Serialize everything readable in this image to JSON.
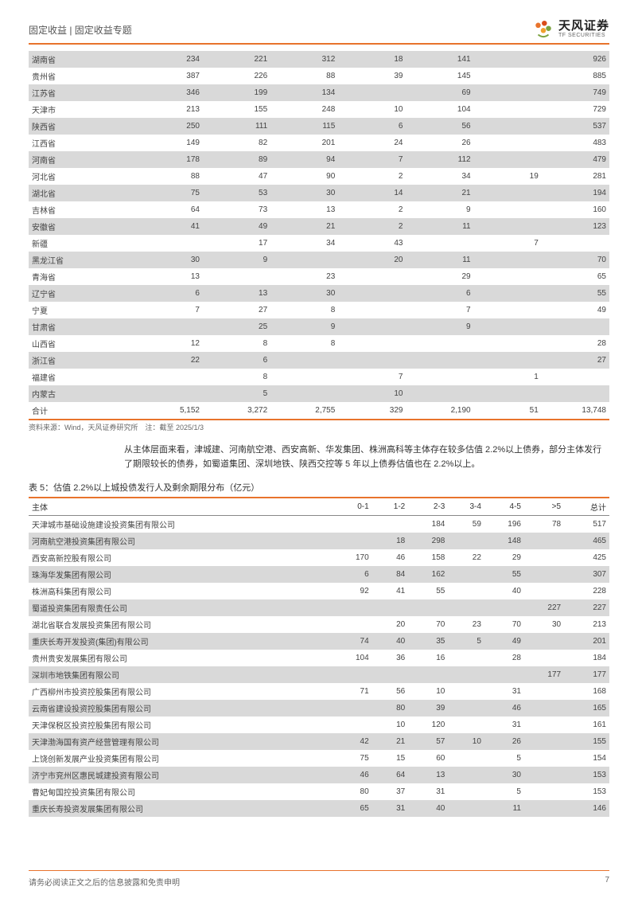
{
  "header": {
    "category": "固定收益 | 固定收益专题",
    "company_cn": "天风证券",
    "company_en": "TF SECURITIES"
  },
  "table1": {
    "rows": [
      {
        "p": "湖南省",
        "c1": "234",
        "c2": "221",
        "c3": "312",
        "c4": "18",
        "c5": "141",
        "c6": "",
        "tot": "926"
      },
      {
        "p": "贵州省",
        "c1": "387",
        "c2": "226",
        "c3": "88",
        "c4": "39",
        "c5": "145",
        "c6": "",
        "tot": "885"
      },
      {
        "p": "江苏省",
        "c1": "346",
        "c2": "199",
        "c3": "134",
        "c4": "",
        "c5": "69",
        "c6": "",
        "tot": "749"
      },
      {
        "p": "天津市",
        "c1": "213",
        "c2": "155",
        "c3": "248",
        "c4": "10",
        "c5": "104",
        "c6": "",
        "tot": "729"
      },
      {
        "p": "陕西省",
        "c1": "250",
        "c2": "111",
        "c3": "115",
        "c4": "6",
        "c5": "56",
        "c6": "",
        "tot": "537"
      },
      {
        "p": "江西省",
        "c1": "149",
        "c2": "82",
        "c3": "201",
        "c4": "24",
        "c5": "26",
        "c6": "",
        "tot": "483"
      },
      {
        "p": "河南省",
        "c1": "178",
        "c2": "89",
        "c3": "94",
        "c4": "7",
        "c5": "112",
        "c6": "",
        "tot": "479"
      },
      {
        "p": "河北省",
        "c1": "88",
        "c2": "47",
        "c3": "90",
        "c4": "2",
        "c5": "34",
        "c6": "19",
        "tot": "281"
      },
      {
        "p": "湖北省",
        "c1": "75",
        "c2": "53",
        "c3": "30",
        "c4": "14",
        "c5": "21",
        "c6": "",
        "tot": "194"
      },
      {
        "p": "吉林省",
        "c1": "64",
        "c2": "73",
        "c3": "13",
        "c4": "2",
        "c5": "9",
        "c6": "",
        "tot": "160"
      },
      {
        "p": "安徽省",
        "c1": "41",
        "c2": "49",
        "c3": "21",
        "c4": "2",
        "c5": "11",
        "c6": "",
        "tot": "123"
      },
      {
        "p": "新疆",
        "c1": "",
        "c2": "17",
        "c3": "34",
        "c4": "43",
        "c5": "",
        "c6": "7",
        "tot": ""
      },
      {
        "p": "黑龙江省",
        "c1": "30",
        "c2": "9",
        "c3": "",
        "c4": "20",
        "c5": "11",
        "c6": "",
        "tot": "70"
      },
      {
        "p": "青海省",
        "c1": "13",
        "c2": "",
        "c3": "23",
        "c4": "",
        "c5": "29",
        "c6": "",
        "tot": "65"
      },
      {
        "p": "辽宁省",
        "c1": "6",
        "c2": "13",
        "c3": "30",
        "c4": "",
        "c5": "6",
        "c6": "",
        "tot": "55"
      },
      {
        "p": "宁夏",
        "c1": "7",
        "c2": "27",
        "c3": "8",
        "c4": "",
        "c5": "7",
        "c6": "",
        "tot": "49"
      },
      {
        "p": "甘肃省",
        "c1": "",
        "c2": "25",
        "c3": "9",
        "c4": "",
        "c5": "9",
        "c6": "",
        "tot": ""
      },
      {
        "p": "山西省",
        "c1": "12",
        "c2": "8",
        "c3": "8",
        "c4": "",
        "c5": "",
        "c6": "",
        "tot": "28"
      },
      {
        "p": "浙江省",
        "c1": "22",
        "c2": "6",
        "c3": "",
        "c4": "",
        "c5": "",
        "c6": "",
        "tot": "27"
      },
      {
        "p": "福建省",
        "c1": "",
        "c2": "8",
        "c3": "",
        "c4": "7",
        "c5": "",
        "c6": "1",
        "tot": ""
      },
      {
        "p": "内蒙古",
        "c1": "",
        "c2": "5",
        "c3": "",
        "c4": "10",
        "c5": "",
        "c6": "",
        "tot": ""
      }
    ],
    "total": {
      "p": "合计",
      "c1": "5,152",
      "c2": "3,272",
      "c3": "2,755",
      "c4": "329",
      "c5": "2,190",
      "c6": "51",
      "tot": "13,748"
    },
    "source": "资料来源：Wind，天风证券研究所　注：截至 2025/1/3"
  },
  "paragraph": "从主体层面来看，津城建、河南航空港、西安高新、华发集团、株洲高科等主体存在较多估值 2.2%以上债券，部分主体发行了期限较长的债券，如蜀道集团、深圳地铁、陕西交控等 5 年以上债券估值也在 2.2%以上。",
  "table2": {
    "title": "表 5：估值 2.2%以上城投债发行人及剩余期限分布（亿元）",
    "headers": {
      "h0": "主体",
      "h1": "0-1",
      "h2": "1-2",
      "h3": "2-3",
      "h4": "3-4",
      "h5": "4-5",
      "h6": ">5",
      "h7": "总计"
    },
    "rows": [
      {
        "n": "天津城市基础设施建设投资集团有限公司",
        "c1": "",
        "c2": "",
        "c3": "184",
        "c4": "59",
        "c5": "196",
        "c6": "78",
        "t": "517"
      },
      {
        "n": "河南航空港投资集团有限公司",
        "c1": "",
        "c2": "18",
        "c3": "298",
        "c4": "",
        "c5": "148",
        "c6": "",
        "t": "465"
      },
      {
        "n": "西安高新控股有限公司",
        "c1": "170",
        "c2": "46",
        "c3": "158",
        "c4": "22",
        "c5": "29",
        "c6": "",
        "t": "425"
      },
      {
        "n": "珠海华发集团有限公司",
        "c1": "6",
        "c2": "84",
        "c3": "162",
        "c4": "",
        "c5": "55",
        "c6": "",
        "t": "307"
      },
      {
        "n": "株洲高科集团有限公司",
        "c1": "92",
        "c2": "41",
        "c3": "55",
        "c4": "",
        "c5": "40",
        "c6": "",
        "t": "228"
      },
      {
        "n": "蜀道投资集团有限责任公司",
        "c1": "",
        "c2": "",
        "c3": "",
        "c4": "",
        "c5": "",
        "c6": "227",
        "t": "227"
      },
      {
        "n": "湖北省联合发展投资集团有限公司",
        "c1": "",
        "c2": "20",
        "c3": "70",
        "c4": "23",
        "c5": "70",
        "c6": "30",
        "t": "213"
      },
      {
        "n": "重庆长寿开发投资(集团)有限公司",
        "c1": "74",
        "c2": "40",
        "c3": "35",
        "c4": "5",
        "c5": "49",
        "c6": "",
        "t": "201"
      },
      {
        "n": "贵州贵安发展集团有限公司",
        "c1": "104",
        "c2": "36",
        "c3": "16",
        "c4": "",
        "c5": "28",
        "c6": "",
        "t": "184"
      },
      {
        "n": "深圳市地铁集团有限公司",
        "c1": "",
        "c2": "",
        "c3": "",
        "c4": "",
        "c5": "",
        "c6": "177",
        "t": "177"
      },
      {
        "n": "广西柳州市投资控股集团有限公司",
        "c1": "71",
        "c2": "56",
        "c3": "10",
        "c4": "",
        "c5": "31",
        "c6": "",
        "t": "168"
      },
      {
        "n": "云南省建设投资控股集团有限公司",
        "c1": "",
        "c2": "80",
        "c3": "39",
        "c4": "",
        "c5": "46",
        "c6": "",
        "t": "165"
      },
      {
        "n": "天津保税区投资控股集团有限公司",
        "c1": "",
        "c2": "10",
        "c3": "120",
        "c4": "",
        "c5": "31",
        "c6": "",
        "t": "161"
      },
      {
        "n": "天津渤海国有资产经营管理有限公司",
        "c1": "42",
        "c2": "21",
        "c3": "57",
        "c4": "10",
        "c5": "26",
        "c6": "",
        "t": "155"
      },
      {
        "n": "上饶创新发展产业投资集团有限公司",
        "c1": "75",
        "c2": "15",
        "c3": "60",
        "c4": "",
        "c5": "5",
        "c6": "",
        "t": "154"
      },
      {
        "n": "济宁市兖州区惠民城建投资有限公司",
        "c1": "46",
        "c2": "64",
        "c3": "13",
        "c4": "",
        "c5": "30",
        "c6": "",
        "t": "153"
      },
      {
        "n": "曹妃甸国控投资集团有限公司",
        "c1": "80",
        "c2": "37",
        "c3": "31",
        "c4": "",
        "c5": "5",
        "c6": "",
        "t": "153"
      },
      {
        "n": "重庆长寿投资发展集团有限公司",
        "c1": "65",
        "c2": "31",
        "c3": "40",
        "c4": "",
        "c5": "11",
        "c6": "",
        "t": "146"
      }
    ]
  },
  "footer": {
    "disclaimer": "请务必阅读正文之后的信息披露和免责申明",
    "page_num": "7"
  },
  "colors": {
    "accent": "#e8732c",
    "row_alt": "#d9d9d9",
    "text": "#333333"
  }
}
